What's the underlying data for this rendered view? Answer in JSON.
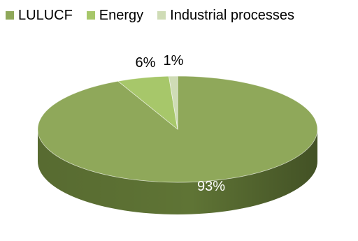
{
  "chart_data": {
    "type": "pie",
    "title": "",
    "legend_position": "top",
    "three_d": true,
    "slices": [
      {
        "name": "LULUCF",
        "value": 93,
        "label": "93%",
        "color": "#8fa85a",
        "side_color": "#5f7435"
      },
      {
        "name": "Energy",
        "value": 6,
        "label": "6%",
        "color": "#a7c76a",
        "side_color": "#7b9846"
      },
      {
        "name": "Industrial processes",
        "value": 1,
        "label": "1%",
        "color": "#cfdcb6",
        "side_color": "#a3b389"
      }
    ],
    "label_colors": {
      "inside": "#ffffff",
      "outside": "#000000"
    }
  }
}
